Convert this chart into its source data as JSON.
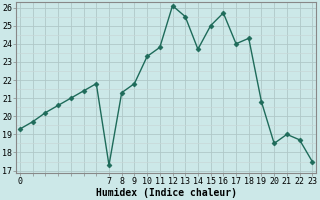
{
  "xlabel": "Humidex (Indice chaleur)",
  "x": [
    0,
    1,
    2,
    3,
    4,
    5,
    6,
    7,
    8,
    9,
    10,
    11,
    12,
    13,
    14,
    15,
    16,
    17,
    18,
    19,
    20,
    21,
    22,
    23
  ],
  "y": [
    19.3,
    19.7,
    20.2,
    20.6,
    21.0,
    21.4,
    21.8,
    17.3,
    21.3,
    21.8,
    23.3,
    23.8,
    26.1,
    25.5,
    23.7,
    25.0,
    25.7,
    24.0,
    24.3,
    20.8,
    18.5,
    19.0,
    18.7,
    17.5
  ],
  "line_color": "#1e6b5a",
  "marker": "D",
  "marker_size": 2.5,
  "bg_color": "#cce8e8",
  "major_grid_color": "#aaaaaa",
  "minor_grid_color": "#dddddd",
  "xlim": [
    -0.5,
    23.5
  ],
  "ylim": [
    17,
    26
  ],
  "yticks": [
    17,
    18,
    19,
    20,
    21,
    22,
    23,
    24,
    25,
    26
  ],
  "xtick_labels": [
    "0",
    "",
    "",
    "",
    "",
    "",
    "",
    "7",
    "8",
    "9",
    "10",
    "11",
    "12",
    "13",
    "14",
    "15",
    "16",
    "17",
    "18",
    "19",
    "20",
    "21",
    "22",
    "23"
  ],
  "title_fontsize": 7,
  "axis_fontsize": 7,
  "tick_fontsize": 6
}
